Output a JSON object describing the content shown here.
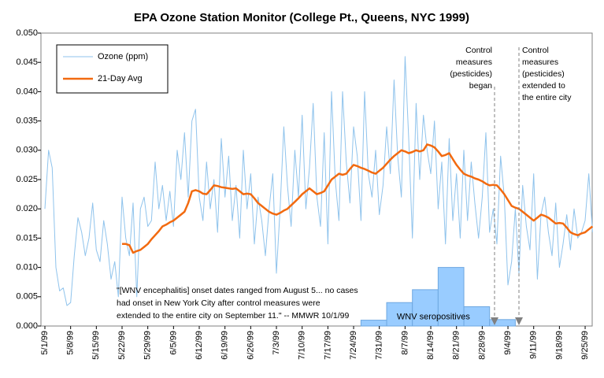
{
  "chart_data": {
    "type": "line",
    "title": "EPA Ozone Station Monitor (College Pt., Queens, NYC 1999)",
    "categories": [
      "5/1/99",
      null,
      null,
      null,
      null,
      null,
      null,
      "5/8/99",
      null,
      null,
      null,
      null,
      null,
      null,
      "5/15/99",
      null,
      null,
      null,
      null,
      null,
      null,
      "5/22/99",
      null,
      null,
      null,
      null,
      null,
      null,
      "5/29/99",
      null,
      null,
      null,
      null,
      null,
      null,
      "6/5/99",
      null,
      null,
      null,
      null,
      null,
      null,
      "6/12/99",
      null,
      null,
      null,
      null,
      null,
      null,
      "6/19/99",
      null,
      null,
      null,
      null,
      null,
      null,
      "6/26/99",
      null,
      null,
      null,
      null,
      null,
      null,
      "7/3/99",
      null,
      null,
      null,
      null,
      null,
      null,
      "7/10/99",
      null,
      null,
      null,
      null,
      null,
      null,
      "7/17/99",
      null,
      null,
      null,
      null,
      null,
      null,
      "7/24/99",
      null,
      null,
      null,
      null,
      null,
      null,
      "7/31/99",
      null,
      null,
      null,
      null,
      null,
      null,
      "8/7/99",
      null,
      null,
      null,
      null,
      null,
      null,
      "8/14/99",
      null,
      null,
      null,
      null,
      null,
      null,
      "8/21/99",
      null,
      null,
      null,
      null,
      null,
      null,
      "8/28/99",
      null,
      null,
      null,
      null,
      null,
      null,
      "9/4/99",
      null,
      null,
      null,
      null,
      null,
      null,
      "9/11/99",
      null,
      null,
      null,
      null,
      null,
      null,
      "9/18/99",
      null,
      null,
      null,
      null,
      null,
      null,
      "9/25/99",
      null,
      null
    ],
    "series": [
      {
        "name": "Ozone (ppm)",
        "color": "#8fc3ec",
        "width": 1,
        "values": [
          0.02,
          0.03,
          0.027,
          0.01,
          0.006,
          0.0065,
          0.0035,
          0.004,
          0.012,
          0.0185,
          0.016,
          0.012,
          0.015,
          0.021,
          0.013,
          0.011,
          0.018,
          0.014,
          0.008,
          0.011,
          0.005,
          0.022,
          0.015,
          0.012,
          0.021,
          0.005,
          0.02,
          0.022,
          0.017,
          0.018,
          0.028,
          0.02,
          0.024,
          0.018,
          0.023,
          0.017,
          0.03,
          0.025,
          0.033,
          0.022,
          0.035,
          0.037,
          0.022,
          0.018,
          0.028,
          0.02,
          0.025,
          0.016,
          0.032,
          0.022,
          0.029,
          0.018,
          0.024,
          0.015,
          0.03,
          0.02,
          0.026,
          0.014,
          0.022,
          0.018,
          0.012,
          0.02,
          0.026,
          0.009,
          0.02,
          0.034,
          0.024,
          0.017,
          0.03,
          0.022,
          0.036,
          0.02,
          0.027,
          0.038,
          0.022,
          0.017,
          0.033,
          0.014,
          0.04,
          0.025,
          0.018,
          0.04,
          0.028,
          0.021,
          0.034,
          0.029,
          0.018,
          0.04,
          0.026,
          0.022,
          0.03,
          0.019,
          0.024,
          0.034,
          0.026,
          0.042,
          0.029,
          0.022,
          0.046,
          0.032,
          0.015,
          0.038,
          0.025,
          0.036,
          0.03,
          0.026,
          0.035,
          0.02,
          0.028,
          0.014,
          0.032,
          0.018,
          0.026,
          0.015,
          0.03,
          0.018,
          0.028,
          0.021,
          0.015,
          0.022,
          0.033,
          0.016,
          0.02,
          0.014,
          0.029,
          0.022,
          0.007,
          0.011,
          0.02,
          0.009,
          0.024,
          0.017,
          0.013,
          0.026,
          0.008,
          0.019,
          0.022,
          0.016,
          0.012,
          0.021,
          0.01,
          0.014,
          0.019,
          0.013,
          0.02,
          0.015,
          0.016,
          0.018,
          0.026,
          0.016
        ]
      },
      {
        "name": "21-Day Avg",
        "color": "#f26a10",
        "width": 2.5,
        "values": [
          null,
          null,
          null,
          null,
          null,
          null,
          null,
          null,
          null,
          null,
          null,
          null,
          null,
          null,
          null,
          null,
          null,
          null,
          null,
          null,
          null,
          0.014,
          0.014,
          0.0138,
          0.0125,
          0.0128,
          0.013,
          0.0135,
          0.014,
          0.0148,
          0.0155,
          0.0162,
          0.017,
          0.0173,
          0.0177,
          0.018,
          0.0185,
          0.019,
          0.0195,
          0.021,
          0.023,
          0.0232,
          0.023,
          0.0226,
          0.0225,
          0.0232,
          0.024,
          0.0239,
          0.0237,
          0.0236,
          0.0235,
          0.0234,
          0.0235,
          0.023,
          0.0225,
          0.0226,
          0.0225,
          0.0218,
          0.021,
          0.0205,
          0.02,
          0.0195,
          0.0192,
          0.019,
          0.0193,
          0.0197,
          0.02,
          0.0206,
          0.0212,
          0.0218,
          0.0225,
          0.023,
          0.0235,
          0.023,
          0.0225,
          0.0227,
          0.023,
          0.024,
          0.025,
          0.0255,
          0.026,
          0.0258,
          0.026,
          0.0268,
          0.0275,
          0.0273,
          0.027,
          0.0268,
          0.0265,
          0.0262,
          0.026,
          0.0265,
          0.027,
          0.0277,
          0.0284,
          0.029,
          0.0295,
          0.03,
          0.0298,
          0.0295,
          0.0297,
          0.03,
          0.0298,
          0.03,
          0.031,
          0.0308,
          0.0305,
          0.0298,
          0.029,
          0.0292,
          0.0295,
          0.0285,
          0.0275,
          0.0267,
          0.026,
          0.0257,
          0.0255,
          0.0252,
          0.025,
          0.0247,
          0.0243,
          0.024,
          0.0241,
          0.024,
          0.0233,
          0.0225,
          0.0215,
          0.0205,
          0.0202,
          0.02,
          0.0195,
          0.019,
          0.0185,
          0.018,
          0.0185,
          0.019,
          0.0188,
          0.0185,
          0.018,
          0.0175,
          0.0176,
          0.0175,
          0.0168,
          0.016,
          0.0157,
          0.0155,
          0.0158,
          0.016,
          0.0165,
          0.017
        ]
      }
    ],
    "histogram": {
      "name": "WNV seropositives",
      "color": "#99ccff",
      "bins": [
        86,
        93,
        100,
        107,
        114,
        121,
        128
      ],
      "values": [
        0.001,
        0.004,
        0.0062,
        0.01,
        0.0033,
        0.0011
      ]
    },
    "ylim": [
      0,
      0.05
    ],
    "yticks": [
      {
        "value": 0,
        "label": "0.000"
      },
      {
        "value": 0.005,
        "label": "0.005"
      },
      {
        "value": 0.01,
        "label": "0.010"
      },
      {
        "value": 0.015,
        "label": "0.015"
      },
      {
        "value": 0.02,
        "label": "0.020"
      },
      {
        "value": 0.025,
        "label": "0.025"
      },
      {
        "value": 0.03,
        "label": "0.030"
      },
      {
        "value": 0.035,
        "label": "0.035"
      },
      {
        "value": 0.04,
        "label": "0.040"
      },
      {
        "value": 0.045,
        "label": "0.045"
      },
      {
        "value": 0.05,
        "label": "0.050"
      }
    ],
    "legend": "top-left",
    "annotations": {
      "quote": [
        "\"[WNV encephalitis] onset dates ranged from August 5... no cases",
        "had onset in New York City after control measures were",
        "extended to the entire city on September 11.\" -- MMWR 10/1/99"
      ],
      "began": [
        "Control",
        "measures",
        "(pesticides)",
        "began"
      ],
      "extended": [
        "Control",
        "measures",
        "(pesticides)",
        "extended to",
        "the entire city"
      ]
    }
  }
}
